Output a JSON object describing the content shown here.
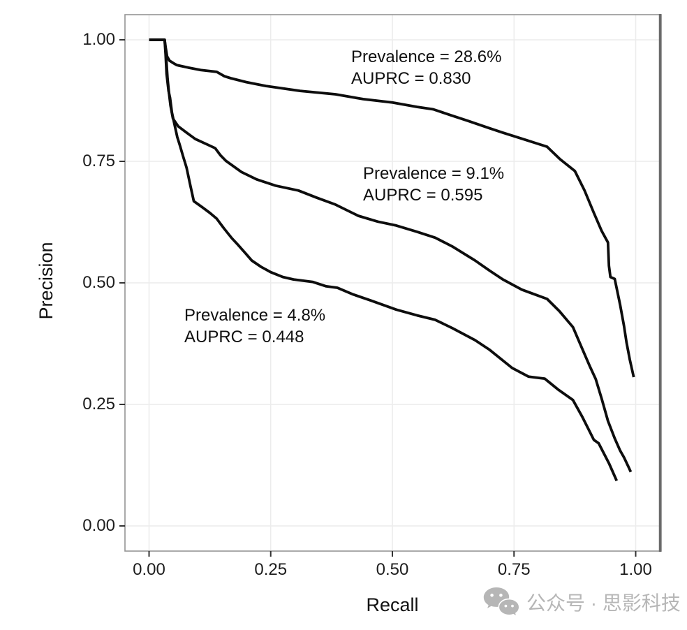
{
  "chart_data": {
    "type": "line",
    "title": "",
    "xlabel": "Recall",
    "ylabel": "Precision",
    "xlim": [
      0,
      1
    ],
    "ylim": [
      0,
      1
    ],
    "grid": "major-only",
    "legend_position": "none",
    "x_ticks": {
      "labels": [
        "0.00",
        "0.25",
        "0.50",
        "0.75",
        "1.00"
      ],
      "values": [
        0,
        0.25,
        0.5,
        0.75,
        1
      ]
    },
    "y_ticks": {
      "labels": [
        "0.00",
        "0.25",
        "0.50",
        "0.75",
        "1.00"
      ],
      "values": [
        0,
        0.25,
        0.5,
        0.75,
        1
      ]
    },
    "series": [
      {
        "name": "prevalence-28.6-percent",
        "prevalence": "28.6%",
        "auprc": 0.83,
        "points": [
          [
            0,
            1
          ],
          [
            0.032,
            1
          ],
          [
            0.034,
            0.985
          ],
          [
            0.037,
            0.966
          ],
          [
            0.042,
            0.957
          ],
          [
            0.05,
            0.952
          ],
          [
            0.057,
            0.948
          ],
          [
            0.08,
            0.943
          ],
          [
            0.106,
            0.938
          ],
          [
            0.139,
            0.934
          ],
          [
            0.155,
            0.925
          ],
          [
            0.168,
            0.921
          ],
          [
            0.2,
            0.913
          ],
          [
            0.24,
            0.905
          ],
          [
            0.31,
            0.895
          ],
          [
            0.383,
            0.888
          ],
          [
            0.44,
            0.878
          ],
          [
            0.5,
            0.871
          ],
          [
            0.55,
            0.862
          ],
          [
            0.584,
            0.857
          ],
          [
            0.62,
            0.845
          ],
          [
            0.656,
            0.833
          ],
          [
            0.7,
            0.818
          ],
          [
            0.727,
            0.809
          ],
          [
            0.765,
            0.797
          ],
          [
            0.818,
            0.78
          ],
          [
            0.845,
            0.754
          ],
          [
            0.875,
            0.73
          ],
          [
            0.895,
            0.69
          ],
          [
            0.914,
            0.644
          ],
          [
            0.93,
            0.607
          ],
          [
            0.943,
            0.583
          ],
          [
            0.945,
            0.535
          ],
          [
            0.948,
            0.512
          ],
          [
            0.957,
            0.508
          ],
          [
            0.968,
            0.455
          ],
          [
            0.976,
            0.411
          ],
          [
            0.981,
            0.378
          ],
          [
            0.988,
            0.342
          ],
          [
            0.996,
            0.306
          ]
        ]
      },
      {
        "name": "prevalence-9.1-percent",
        "prevalence": "9.1%",
        "auprc": 0.595,
        "points": [
          [
            0,
            1
          ],
          [
            0.032,
            1
          ],
          [
            0.034,
            0.98
          ],
          [
            0.036,
            0.95
          ],
          [
            0.038,
            0.92
          ],
          [
            0.041,
            0.89
          ],
          [
            0.044,
            0.865
          ],
          [
            0.049,
            0.838
          ],
          [
            0.06,
            0.822
          ],
          [
            0.077,
            0.809
          ],
          [
            0.095,
            0.796
          ],
          [
            0.121,
            0.784
          ],
          [
            0.136,
            0.777
          ],
          [
            0.147,
            0.762
          ],
          [
            0.158,
            0.751
          ],
          [
            0.19,
            0.728
          ],
          [
            0.221,
            0.713
          ],
          [
            0.26,
            0.7
          ],
          [
            0.307,
            0.69
          ],
          [
            0.345,
            0.675
          ],
          [
            0.383,
            0.661
          ],
          [
            0.43,
            0.638
          ],
          [
            0.47,
            0.626
          ],
          [
            0.508,
            0.618
          ],
          [
            0.551,
            0.605
          ],
          [
            0.588,
            0.593
          ],
          [
            0.623,
            0.575
          ],
          [
            0.67,
            0.546
          ],
          [
            0.7,
            0.525
          ],
          [
            0.727,
            0.507
          ],
          [
            0.766,
            0.486
          ],
          [
            0.818,
            0.467
          ],
          [
            0.843,
            0.442
          ],
          [
            0.871,
            0.409
          ],
          [
            0.89,
            0.365
          ],
          [
            0.905,
            0.33
          ],
          [
            0.918,
            0.302
          ],
          [
            0.93,
            0.262
          ],
          [
            0.943,
            0.216
          ],
          [
            0.957,
            0.18
          ],
          [
            0.968,
            0.155
          ],
          [
            0.976,
            0.141
          ],
          [
            0.985,
            0.122
          ],
          [
            0.99,
            0.111
          ]
        ]
      },
      {
        "name": "prevalence-4.8-percent",
        "prevalence": "4.8%",
        "auprc": 0.448,
        "points": [
          [
            0,
            1
          ],
          [
            0.032,
            1
          ],
          [
            0.034,
            0.97
          ],
          [
            0.036,
            0.93
          ],
          [
            0.04,
            0.895
          ],
          [
            0.043,
            0.881
          ],
          [
            0.047,
            0.85
          ],
          [
            0.053,
            0.823
          ],
          [
            0.058,
            0.8
          ],
          [
            0.063,
            0.784
          ],
          [
            0.07,
            0.76
          ],
          [
            0.077,
            0.737
          ],
          [
            0.085,
            0.7
          ],
          [
            0.092,
            0.668
          ],
          [
            0.11,
            0.655
          ],
          [
            0.125,
            0.644
          ],
          [
            0.139,
            0.632
          ],
          [
            0.154,
            0.612
          ],
          [
            0.17,
            0.592
          ],
          [
            0.182,
            0.579
          ],
          [
            0.198,
            0.561
          ],
          [
            0.211,
            0.546
          ],
          [
            0.23,
            0.533
          ],
          [
            0.25,
            0.522
          ],
          [
            0.275,
            0.512
          ],
          [
            0.297,
            0.507
          ],
          [
            0.336,
            0.502
          ],
          [
            0.364,
            0.493
          ],
          [
            0.387,
            0.49
          ],
          [
            0.42,
            0.476
          ],
          [
            0.455,
            0.464
          ],
          [
            0.508,
            0.445
          ],
          [
            0.551,
            0.433
          ],
          [
            0.588,
            0.424
          ],
          [
            0.623,
            0.407
          ],
          [
            0.67,
            0.382
          ],
          [
            0.699,
            0.363
          ],
          [
            0.746,
            0.325
          ],
          [
            0.78,
            0.307
          ],
          [
            0.813,
            0.303
          ],
          [
            0.84,
            0.281
          ],
          [
            0.871,
            0.259
          ],
          [
            0.89,
            0.225
          ],
          [
            0.914,
            0.177
          ],
          [
            0.924,
            0.17
          ],
          [
            0.945,
            0.129
          ],
          [
            0.961,
            0.093
          ]
        ]
      }
    ],
    "annotations": [
      {
        "line1": "Prevalence = 28.6%",
        "line2": "AUPRC = 0.830"
      },
      {
        "line1": "Prevalence = 9.1%",
        "line2": "AUPRC = 0.595"
      },
      {
        "line1": "Prevalence = 4.8%",
        "line2": "AUPRC = 0.448"
      }
    ],
    "colors": {
      "curve": "#0d0d0d",
      "grid": "#ececec",
      "panel_border": "#949494",
      "panel_border_right": "#6a6a6a",
      "tick_mark": "#333333"
    }
  },
  "watermark": {
    "icon": "wechat-icon",
    "text": "公众号 · 思影科技",
    "color": "#b6b6b6"
  }
}
